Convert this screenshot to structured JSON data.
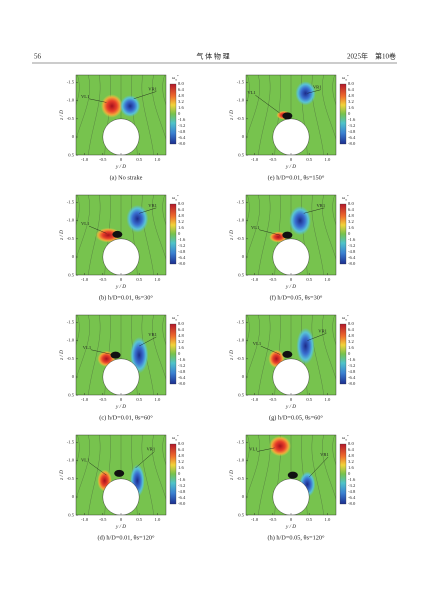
{
  "header": {
    "page": "56",
    "journal": "气 体 物 理",
    "issue": "2025年　第10卷"
  },
  "axes": {
    "x_label": "y / D",
    "y_label": "z / D",
    "x_ticks": [
      "-1.0",
      "-0.5",
      "0",
      "0.5",
      "1.0"
    ],
    "y_ticks": [
      "-1.5",
      "-1.0",
      "-0.5",
      "0",
      "0.5"
    ],
    "colorbar_title": {
      "base": "ω",
      "sub": "x",
      "sup": "*"
    },
    "colorbar_ticks": [
      "8.0",
      "6.4",
      "4.8",
      "3.2",
      "1.6",
      "0",
      "-1.6",
      "-3.2",
      "-4.8",
      "-6.4",
      "-8.0"
    ]
  },
  "panels": [
    {
      "caption": "(a) No strake",
      "labels": [
        "VL1",
        "VR1"
      ]
    },
    {
      "caption": "(b) h/D=0.01, θs=30°",
      "labels": [
        "VL1",
        "VR1"
      ]
    },
    {
      "caption": "(c) h/D=0.01, θs=60°",
      "labels": [
        "VL1",
        "VR1"
      ]
    },
    {
      "caption": "(d) h/D=0.01, θs=120°",
      "labels": [
        "VL1",
        "VR1"
      ]
    },
    {
      "caption": "(e) h/D=0.01, θs=150°",
      "labels": [
        "VL1",
        "VR1"
      ]
    },
    {
      "caption": "(f) h/D=0.05, θs=30°",
      "labels": [
        "VL1",
        "VR1"
      ]
    },
    {
      "caption": "(g) h/D=0.05, θs=60°",
      "labels": [
        "VL1",
        "VR1"
      ]
    },
    {
      "caption": "(h) h/D=0.05, θs=120°",
      "labels": [
        "VL1",
        "VR1"
      ]
    }
  ]
}
